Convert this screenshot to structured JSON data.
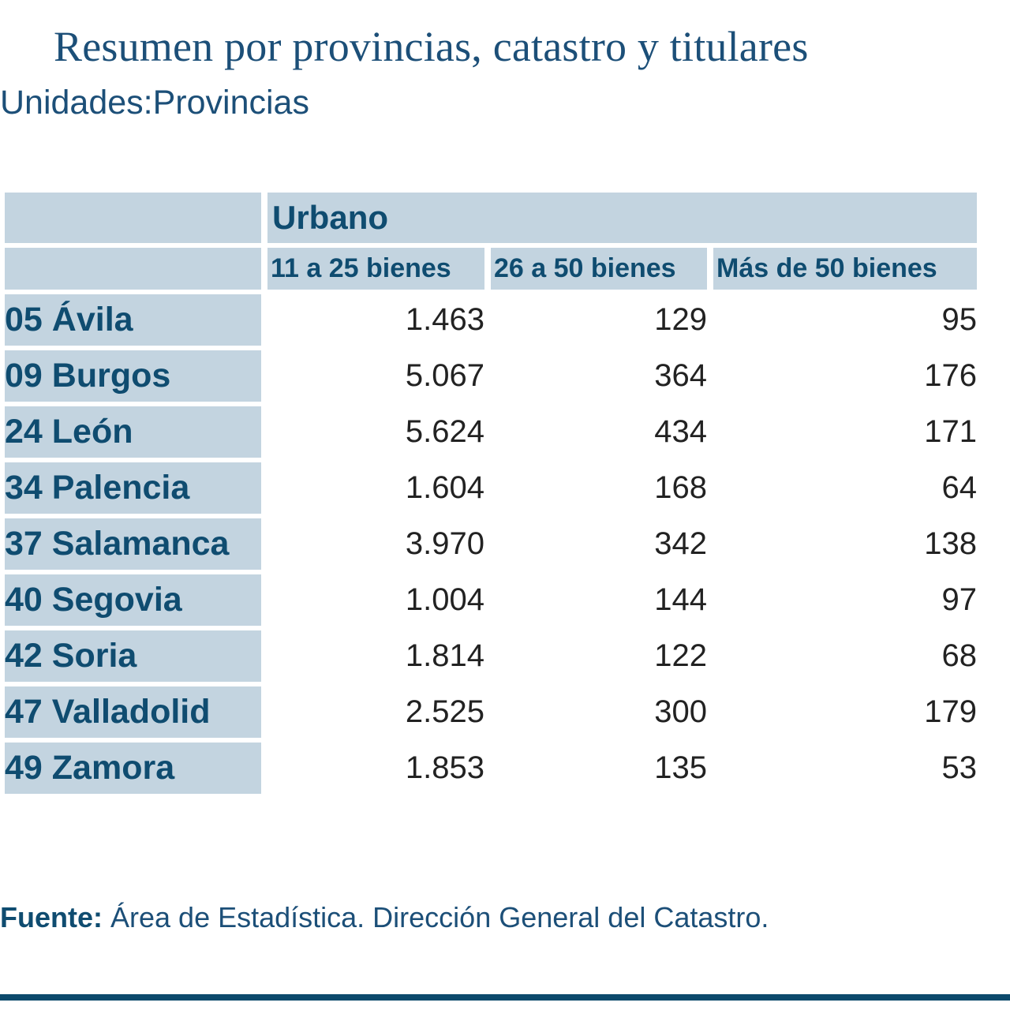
{
  "page": {
    "title": "Resumen por provincias, catastro y titulares",
    "units": "Unidades:Provincias"
  },
  "table": {
    "group_header": "Urbano",
    "columns": [
      "11 a 25 bienes",
      "26 a 50 bienes",
      "Más de 50 bienes"
    ],
    "rows": [
      {
        "label": "05 Ávila",
        "values": [
          "1.463",
          "129",
          "95"
        ]
      },
      {
        "label": "09 Burgos",
        "values": [
          "5.067",
          "364",
          "176"
        ]
      },
      {
        "label": "24 León",
        "values": [
          "5.624",
          "434",
          "171"
        ]
      },
      {
        "label": "34 Palencia",
        "values": [
          "1.604",
          "168",
          "64"
        ]
      },
      {
        "label": "37 Salamanca",
        "values": [
          "3.970",
          "342",
          "138"
        ]
      },
      {
        "label": "40 Segovia",
        "values": [
          "1.004",
          "144",
          "97"
        ]
      },
      {
        "label": "42 Soria",
        "values": [
          "1.814",
          "122",
          "68"
        ]
      },
      {
        "label": "47 Valladolid",
        "values": [
          "2.525",
          "300",
          "179"
        ]
      },
      {
        "label": "49 Zamora",
        "values": [
          "1.853",
          "135",
          "53"
        ]
      }
    ]
  },
  "footer": {
    "source_label": "Fuente:",
    "source_text": " Área de Estadística. Dirección General del Catastro."
  },
  "colors": {
    "header_bg": "#c3d4e0",
    "text_blue": "#1c4f78",
    "rule": "#0c4a6c"
  }
}
